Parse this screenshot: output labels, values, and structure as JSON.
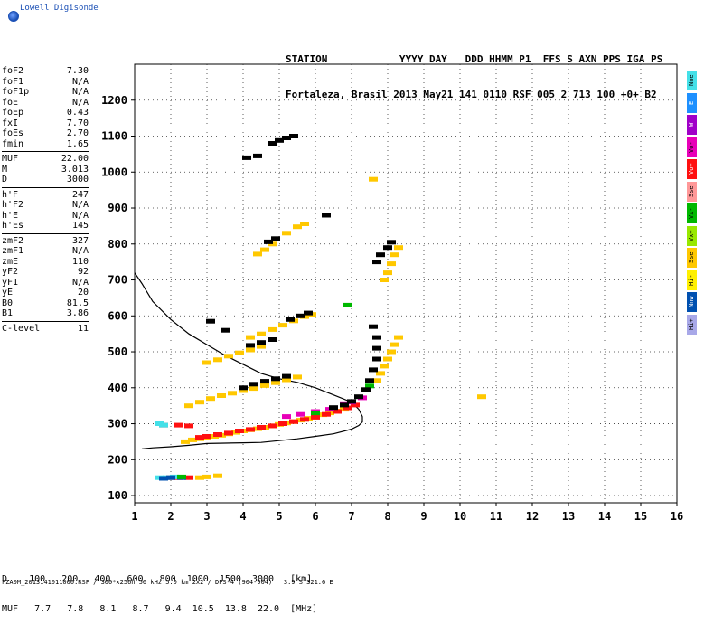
{
  "logo": {
    "text": "Lowell Digisonde"
  },
  "header": {
    "line1": "STATION            YYYY DAY   DDD HHMM P1  FFS S AXN PPS IGA PS",
    "line2": "Fortaleza, Brasil 2013 May21 141 0110 RSF 005 2 713 100 +0+ B2"
  },
  "params": [
    {
      "name": "foF2",
      "value": "7.30"
    },
    {
      "name": "foF1",
      "value": "N/A"
    },
    {
      "name": "foF1p",
      "value": "N/A"
    },
    {
      "name": "foE",
      "value": "N/A"
    },
    {
      "name": "foEp",
      "value": "0.43"
    },
    {
      "name": "fxI",
      "value": "7.70"
    },
    {
      "name": "foEs",
      "value": "2.70"
    },
    {
      "name": "fmin",
      "value": "1.65"
    },
    {
      "sep": true
    },
    {
      "name": "MUF",
      "value": "22.00"
    },
    {
      "name": "M",
      "value": "3.013"
    },
    {
      "name": "D",
      "value": "3000"
    },
    {
      "sep": true
    },
    {
      "name": "h'F",
      "value": "247"
    },
    {
      "name": "h'F2",
      "value": "N/A"
    },
    {
      "name": "h'E",
      "value": "N/A"
    },
    {
      "name": "h'Es",
      "value": "145"
    },
    {
      "sep": true
    },
    {
      "name": "zmF2",
      "value": "327"
    },
    {
      "name": "zmF1",
      "value": "N/A"
    },
    {
      "name": "zmE",
      "value": "110"
    },
    {
      "name": "yF2",
      "value": "92"
    },
    {
      "name": "yF1",
      "value": "N/A"
    },
    {
      "name": "yE",
      "value": "20"
    },
    {
      "name": "B0",
      "value": "81.5"
    },
    {
      "name": "B1",
      "value": "3.86"
    },
    {
      "sep": true
    },
    {
      "name": "C-level",
      "value": "11"
    }
  ],
  "legend": [
    {
      "label": "Nne",
      "color": "#44e0e8"
    },
    {
      "label": "E",
      "color": "#1e90ff"
    },
    {
      "label": "W",
      "color": "#a000c8"
    },
    {
      "label": "Vo-",
      "color": "#e800b8"
    },
    {
      "label": "Vo+",
      "color": "#ff1010"
    },
    {
      "label": "Sse",
      "color": "#ff9898"
    },
    {
      "label": "Vx-",
      "color": "#00b800"
    },
    {
      "label": "Vx+",
      "color": "#98e800"
    },
    {
      "label": "Sse",
      "color": "#ffc800"
    },
    {
      "label": "Hi-",
      "color": "#fff000"
    },
    {
      "label": "Nnw",
      "color": "#0050b0"
    },
    {
      "label": "Hi+",
      "color": "#a8a8e8"
    }
  ],
  "muf_table": {
    "row1": "D    100   200   400   600   800  1000  1500  3000   [km]",
    "row2": "MUF   7.7   7.8   8.1   8.7   9.4  10.5  13.8  22.0  [MHz]"
  },
  "footer": "FZA0M_2013141011000.RSF / 300*x256h 50 kHz 5.0 km 2x2 / DPS-4 (904-904)   3.9 S 321.6 E",
  "chart_data": {
    "type": "scatter",
    "title": "",
    "xlabel": "",
    "ylabel": "",
    "xlim": [
      1,
      16
    ],
    "ylim": [
      80,
      1300
    ],
    "x_ticks": [
      1,
      2,
      3,
      4,
      5,
      6,
      7,
      8,
      9,
      10,
      11,
      12,
      13,
      14,
      15,
      16
    ],
    "y_ticks": [
      100,
      200,
      300,
      400,
      500,
      600,
      700,
      800,
      900,
      1000,
      1100,
      1200
    ],
    "grid": true,
    "profile_curve": [
      [
        1.0,
        720
      ],
      [
        1.2,
        690
      ],
      [
        1.5,
        640
      ],
      [
        2,
        590
      ],
      [
        2.5,
        550
      ],
      [
        3,
        520
      ],
      [
        3.5,
        490
      ],
      [
        4,
        465
      ],
      [
        4.5,
        440
      ],
      [
        5,
        425
      ],
      [
        5.5,
        415
      ],
      [
        6,
        400
      ],
      [
        6.5,
        380
      ],
      [
        7,
        360
      ],
      [
        7.2,
        340
      ],
      [
        7.3,
        320
      ],
      [
        7.3,
        305
      ],
      [
        7.2,
        295
      ],
      [
        7.0,
        285
      ],
      [
        6.5,
        272
      ],
      [
        6,
        265
      ],
      [
        5.5,
        258
      ],
      [
        5,
        253
      ],
      [
        4.5,
        248
      ],
      [
        4,
        247
      ],
      [
        3.5,
        246
      ],
      [
        3,
        245
      ],
      [
        2.5,
        240
      ],
      [
        2,
        236
      ],
      [
        1.5,
        233
      ],
      [
        1.2,
        230
      ]
    ],
    "series": [
      {
        "name": "Sse",
        "color": "#ffc800",
        "points": [
          [
            2.4,
            250
          ],
          [
            2.6,
            255
          ],
          [
            2.8,
            258
          ],
          [
            3.0,
            262
          ],
          [
            3.2,
            265
          ],
          [
            3.4,
            268
          ],
          [
            3.6,
            272
          ],
          [
            3.8,
            276
          ],
          [
            4.0,
            280
          ],
          [
            4.2,
            283
          ],
          [
            4.4,
            286
          ],
          [
            4.6,
            290
          ],
          [
            4.8,
            294
          ],
          [
            5.0,
            298
          ],
          [
            5.2,
            302
          ],
          [
            5.4,
            306
          ],
          [
            5.6,
            310
          ],
          [
            5.8,
            315
          ],
          [
            6.0,
            320
          ],
          [
            6.2,
            325
          ],
          [
            6.4,
            330
          ],
          [
            6.6,
            335
          ],
          [
            6.8,
            340
          ],
          [
            2.5,
            350
          ],
          [
            2.8,
            360
          ],
          [
            3.1,
            370
          ],
          [
            3.4,
            378
          ],
          [
            3.7,
            385
          ],
          [
            4.0,
            392
          ],
          [
            4.3,
            398
          ],
          [
            4.6,
            406
          ],
          [
            4.9,
            414
          ],
          [
            5.2,
            422
          ],
          [
            5.5,
            430
          ],
          [
            3.0,
            470
          ],
          [
            3.3,
            478
          ],
          [
            3.6,
            488
          ],
          [
            3.9,
            497
          ],
          [
            4.2,
            505
          ],
          [
            4.5,
            515
          ],
          [
            4.2,
            540
          ],
          [
            4.5,
            550
          ],
          [
            4.8,
            562
          ],
          [
            5.1,
            574
          ],
          [
            5.4,
            586
          ],
          [
            5.7,
            598
          ],
          [
            5.9,
            604
          ],
          [
            4.4,
            772
          ],
          [
            4.6,
            784
          ],
          [
            4.8,
            800
          ],
          [
            5.2,
            830
          ],
          [
            5.5,
            848
          ],
          [
            5.7,
            856
          ],
          [
            7.7,
            420
          ],
          [
            7.8,
            440
          ],
          [
            7.9,
            460
          ],
          [
            8.0,
            480
          ],
          [
            8.1,
            500
          ],
          [
            8.2,
            520
          ],
          [
            8.3,
            540
          ],
          [
            7.9,
            700
          ],
          [
            8.0,
            720
          ],
          [
            8.1,
            745
          ],
          [
            8.2,
            770
          ],
          [
            8.3,
            790
          ],
          [
            2.8,
            150
          ],
          [
            3.0,
            152
          ],
          [
            3.3,
            155
          ],
          [
            6.3,
            880
          ],
          [
            7.6,
            980
          ],
          [
            10.6,
            375
          ]
        ]
      },
      {
        "name": "Vo+",
        "color": "#ff1010",
        "points": [
          [
            2.8,
            262
          ],
          [
            3.0,
            265
          ],
          [
            3.3,
            270
          ],
          [
            3.6,
            274
          ],
          [
            3.9,
            280
          ],
          [
            4.2,
            284
          ],
          [
            4.5,
            290
          ],
          [
            4.8,
            294
          ],
          [
            5.1,
            300
          ],
          [
            5.4,
            306
          ],
          [
            5.7,
            312
          ],
          [
            6.0,
            318
          ],
          [
            6.3,
            326
          ],
          [
            6.6,
            334
          ],
          [
            6.9,
            344
          ],
          [
            7.1,
            352
          ],
          [
            2.0,
            150
          ],
          [
            2.2,
            150
          ],
          [
            2.5,
            150
          ],
          [
            1.8,
            296
          ],
          [
            2.2,
            296
          ],
          [
            2.5,
            294
          ]
        ]
      },
      {
        "name": "Vo-",
        "color": "#e800b8",
        "points": [
          [
            5.2,
            320
          ],
          [
            5.6,
            326
          ],
          [
            6.0,
            334
          ],
          [
            6.4,
            340
          ],
          [
            6.8,
            356
          ],
          [
            7.0,
            360
          ],
          [
            7.3,
            372
          ]
        ]
      },
      {
        "name": "Nne",
        "color": "#44e0e8",
        "points": [
          [
            1.7,
            150
          ],
          [
            1.9,
            150
          ],
          [
            2.1,
            152
          ],
          [
            1.7,
            300
          ],
          [
            1.8,
            296
          ]
        ]
      },
      {
        "name": "Nnw",
        "color": "#0050b0",
        "points": [
          [
            1.8,
            148
          ],
          [
            2.0,
            150
          ],
          [
            2.3,
            150
          ]
        ]
      },
      {
        "name": "Vx-",
        "color": "#00b800",
        "points": [
          [
            2.3,
            152
          ],
          [
            6.0,
            330
          ],
          [
            6.9,
            630
          ],
          [
            7.5,
            405
          ]
        ]
      },
      {
        "name": "Hi-",
        "color": "#000000",
        "points": [
          [
            4.0,
            400
          ],
          [
            4.3,
            410
          ],
          [
            4.6,
            418
          ],
          [
            4.9,
            425
          ],
          [
            5.2,
            432
          ],
          [
            4.2,
            518
          ],
          [
            4.5,
            526
          ],
          [
            4.8,
            534
          ],
          [
            5.3,
            590
          ],
          [
            5.6,
            600
          ],
          [
            5.8,
            608
          ],
          [
            4.8,
            1080
          ],
          [
            5.0,
            1088
          ],
          [
            5.2,
            1095
          ],
          [
            5.4,
            1100
          ],
          [
            4.1,
            1040
          ],
          [
            4.4,
            1045
          ],
          [
            4.7,
            806
          ],
          [
            4.9,
            815
          ],
          [
            6.3,
            880
          ],
          [
            6.5,
            345
          ],
          [
            6.8,
            352
          ],
          [
            7.0,
            362
          ],
          [
            7.2,
            375
          ],
          [
            7.4,
            395
          ],
          [
            7.5,
            420
          ],
          [
            7.6,
            450
          ],
          [
            7.7,
            480
          ],
          [
            7.7,
            510
          ],
          [
            7.7,
            540
          ],
          [
            7.6,
            570
          ],
          [
            7.7,
            750
          ],
          [
            7.8,
            770
          ],
          [
            8.0,
            790
          ],
          [
            8.1,
            805
          ],
          [
            3.1,
            585
          ],
          [
            3.5,
            560
          ]
        ]
      }
    ]
  }
}
